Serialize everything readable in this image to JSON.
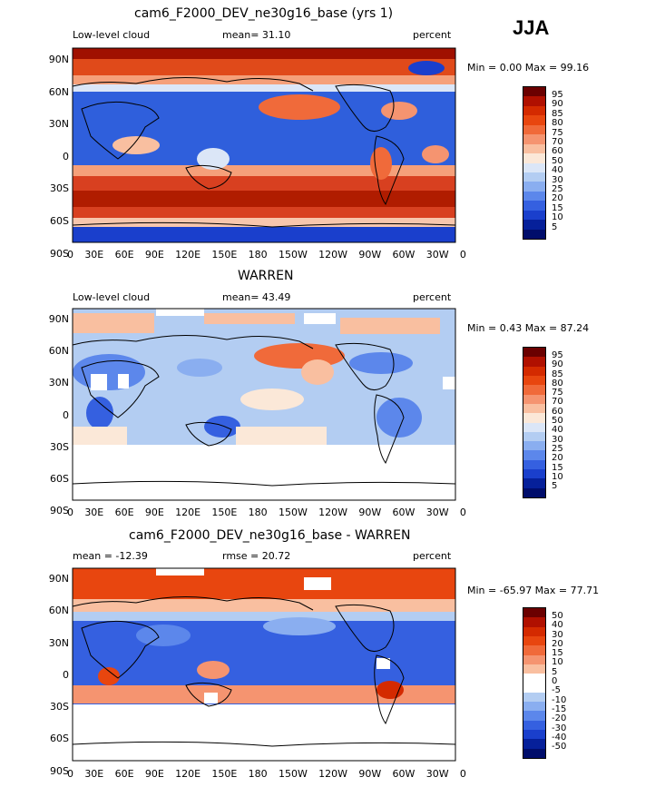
{
  "season": "JJA",
  "axes": {
    "lat_labels": [
      "90N",
      "60N",
      "30N",
      "0",
      "30S",
      "60S",
      "90S"
    ],
    "lon_labels": [
      "0",
      "30E",
      "60E",
      "90E",
      "120E",
      "150E",
      "180",
      "150W",
      "120W",
      "90W",
      "60W",
      "30W",
      "0"
    ]
  },
  "panels": [
    {
      "title": "cam6_F2000_DEV_ne30g16_base (yrs 1)",
      "left_label": "Low-level cloud",
      "center_label": "mean=  31.10",
      "right_label": "percent",
      "minmax": "Min =   0.00 Max =  99.16",
      "colorbar_labels": [
        "95",
        "90",
        "85",
        "80",
        "75",
        "70",
        "60",
        "50",
        "40",
        "30",
        "25",
        "20",
        "15",
        "10",
        "5"
      ]
    },
    {
      "title": "WARREN",
      "left_label": "Low-level cloud",
      "center_label": "mean=  43.49",
      "right_label": "percent",
      "minmax": "Min =   0.43 Max =  87.24",
      "colorbar_labels": [
        "95",
        "90",
        "85",
        "80",
        "75",
        "70",
        "60",
        "50",
        "40",
        "30",
        "25",
        "20",
        "15",
        "10",
        "5"
      ]
    },
    {
      "title": "cam6_F2000_DEV_ne30g16_base - WARREN",
      "left_label": "mean = -12.39",
      "center_label": "rmse =  20.72",
      "right_label": "percent",
      "minmax": "Min = -65.97 Max =  77.71",
      "colorbar_labels": [
        "50",
        "40",
        "30",
        "20",
        "15",
        "10",
        "5",
        "0",
        "-5",
        "-10",
        "-15",
        "-20",
        "-30",
        "-40",
        "-50"
      ]
    }
  ],
  "colors": {
    "scale": [
      "#6b0000",
      "#b01000",
      "#d42a00",
      "#e8460f",
      "#f06a3a",
      "#f59470",
      "#f9bfa0",
      "#fbe8d8",
      "#dbe6f7",
      "#b3cdf2",
      "#8aaef0",
      "#5c87eb",
      "#3560e0",
      "#1a3fcc",
      "#06209a",
      "#000d6b"
    ],
    "frame": "#000000",
    "land_outline": "#000000"
  }
}
